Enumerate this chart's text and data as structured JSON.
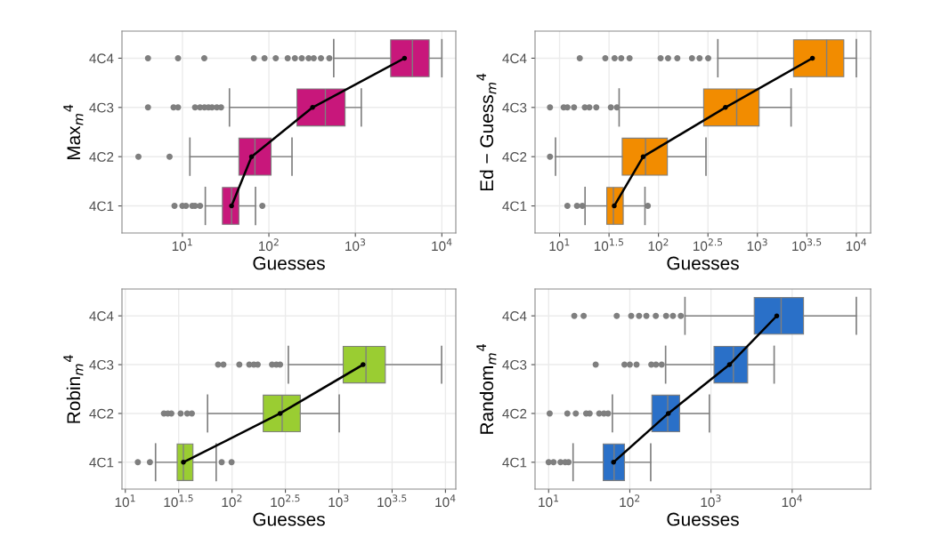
{
  "chart_data": [
    {
      "type": "box",
      "orientation": "horizontal",
      "log": "x",
      "grid": true,
      "legend": false,
      "xlabel": "Guesses",
      "ylabel": "Max$_{m}$$^{4}$",
      "categories": [
        "4C4",
        "4C3",
        "4C2",
        "4C1"
      ],
      "xlim": [
        2,
        14500
      ],
      "xticks": [
        {
          "value": 10,
          "label": "10$^{1}$"
        },
        {
          "value": 100,
          "label": "10$^{2}$"
        },
        {
          "value": 1000,
          "label": "10$^{3}$"
        },
        {
          "value": 10000,
          "label": "10$^{4}$"
        }
      ],
      "series": [
        {
          "type": "box",
          "color": "#c8177b",
          "boxes": [
            {
              "low": 562,
              "q1": 2560,
              "median": 4570,
              "q3": 7130,
              "high": 10000,
              "outliers": [
                4,
                8.9,
                17.9,
                67,
                89,
                120,
                165,
                200,
                240,
                288,
                330,
                400,
                500
              ]
            },
            {
              "low": 35,
              "q1": 211,
              "median": 450,
              "q3": 760,
              "high": 1170,
              "outliers": [
                4,
                7.9,
                8.9,
                14,
                16,
                18,
                20,
                22,
                25,
                28
              ]
            },
            {
              "low": 12.2,
              "q1": 45,
              "median": 69,
              "q3": 106,
              "high": 185,
              "outliers": [
                3.1,
                7.1
              ]
            },
            {
              "low": 18.4,
              "q1": 29,
              "median": 37,
              "q3": 45,
              "high": 70,
              "outliers": [
                8.1,
                10,
                11,
                13,
                14,
                16,
                84
              ]
            }
          ]
        },
        {
          "type": "line",
          "color": "#000000",
          "marker": "circle",
          "values": [
            3700,
            320,
            63,
            37
          ]
        }
      ]
    },
    {
      "type": "box",
      "orientation": "horizontal",
      "log": "x",
      "grid": true,
      "legend": false,
      "xlabel": "Guesses",
      "ylabel": "Ed − Guess$_{m}$$^{4}$",
      "categories": [
        "4C4",
        "4C3",
        "4C2",
        "4C1"
      ],
      "xlim": [
        5.65,
        13960
      ],
      "xticks": [
        {
          "value": 10,
          "label": "10$^{1}$"
        },
        {
          "value": 31.6227766,
          "label": "10$^{1.5}$"
        },
        {
          "value": 100,
          "label": "10$^{2}$"
        },
        {
          "value": 316.227766,
          "label": "10$^{2.5}$"
        },
        {
          "value": 1000,
          "label": "10$^{3}$"
        },
        {
          "value": 3162.27766,
          "label": "10$^{3.5}$"
        },
        {
          "value": 10000,
          "label": "10$^{4}$"
        }
      ],
      "series": [
        {
          "type": "box",
          "color": "#f28c00",
          "boxes": [
            {
              "low": 398,
              "q1": 2320,
              "median": 5010,
              "q3": 7470,
              "high": 10000,
              "outliers": [
                16,
                29,
                36,
                42,
                51,
                105,
                125,
                155,
                218,
                260,
                318
              ]
            },
            {
              "low": 40,
              "q1": 286,
              "median": 617,
              "q3": 1040,
              "high": 2190,
              "outliers": [
                8,
                11,
                12,
                14,
                18,
                20,
                23.5,
                33,
                38
              ]
            },
            {
              "low": 9.1,
              "q1": 43,
              "median": 74,
              "q3": 123,
              "high": 302,
              "outliers": [
                8
              ]
            },
            {
              "low": 18.1,
              "q1": 30,
              "median": 35,
              "q3": 44,
              "high": 73,
              "outliers": [
                12,
                15,
                17,
                78
              ]
            }
          ]
        },
        {
          "type": "line",
          "color": "#000000",
          "marker": "circle",
          "values": [
            3600,
            475,
            70,
            35.7
          ]
        }
      ]
    },
    {
      "type": "box",
      "orientation": "horizontal",
      "log": "x",
      "grid": true,
      "legend": false,
      "xlabel": "Guesses",
      "ylabel": "Robin$_{m}$$^{4}$",
      "categories": [
        "4C4",
        "4C3",
        "4C2",
        "4C1"
      ],
      "xlim": [
        9.3,
        12500
      ],
      "xticks": [
        {
          "value": 10,
          "label": "10$^{1}$"
        },
        {
          "value": 31.6227766,
          "label": "10$^{1.5}$"
        },
        {
          "value": 100,
          "label": "10$^{2}$"
        },
        {
          "value": 316.227766,
          "label": "10$^{2.5}$"
        },
        {
          "value": 1000,
          "label": "10$^{3}$"
        },
        {
          "value": 3162.27766,
          "label": "10$^{3.5}$"
        },
        {
          "value": 10000,
          "label": "10$^{4}$"
        }
      ],
      "series": [
        {
          "type": "box",
          "color": "#9acd32",
          "boxes": [
            null,
            {
              "low": 337,
              "q1": 1100,
              "median": 1800,
              "q3": 2730,
              "high": 9200,
              "outliers": [
                74,
                83,
                117,
                145,
                160,
                174,
                237,
                260,
                282
              ]
            },
            {
              "low": 59,
              "q1": 196,
              "median": 295,
              "q3": 436,
              "high": 1010,
              "outliers": [
                23,
                25,
                27,
                33,
                38,
                42
              ]
            },
            {
              "low": 19.2,
              "q1": 30.6,
              "median": 35,
              "q3": 43,
              "high": 71,
              "outliers": [
                13.1,
                17,
                80,
                99
              ]
            }
          ]
        },
        {
          "type": "line",
          "color": "#000000",
          "marker": "circle",
          "values": [
            null,
            1690,
            282,
            35
          ]
        }
      ]
    },
    {
      "type": "box",
      "orientation": "horizontal",
      "log": "x",
      "grid": true,
      "legend": false,
      "xlabel": "Guesses",
      "ylabel": "Random$_{m}$$^{4}$",
      "categories": [
        "4C4",
        "4C3",
        "4C2",
        "4C1"
      ],
      "xlim": [
        6.8,
        92700
      ],
      "xticks": [
        {
          "value": 10,
          "label": "10$^{1}$"
        },
        {
          "value": 100,
          "label": "10$^{2}$"
        },
        {
          "value": 1000,
          "label": "10$^{3}$"
        },
        {
          "value": 10000,
          "label": "10$^{4}$"
        }
      ],
      "series": [
        {
          "type": "box",
          "color": "#2a70c8",
          "boxes": [
            {
              "low": 478,
              "q1": 3410,
              "median": 7320,
              "q3": 13800,
              "high": 61700,
              "outliers": [
                20.7,
                27,
                69,
                104,
                130,
                160,
                209,
                280,
                340,
                425
              ]
            },
            {
              "low": 276,
              "q1": 1090,
              "median": 1890,
              "q3": 2830,
              "high": 6000,
              "outliers": [
                38,
                86,
                100,
                121,
                184,
                210,
                247
              ]
            },
            {
              "low": 61,
              "q1": 187,
              "median": 293,
              "q3": 411,
              "high": 955,
              "outliers": [
                10.3,
                17,
                21.6,
                29,
                32,
                42,
                48,
                54
              ]
            },
            {
              "low": 20,
              "q1": 47,
              "median": 64,
              "q3": 86,
              "high": 181,
              "outliers": [
                10,
                11.5,
                14,
                16,
                17.6
              ]
            }
          ]
        },
        {
          "type": "line",
          "color": "#000000",
          "marker": "circle",
          "values": [
            6460,
            1690,
            298,
            63
          ]
        }
      ]
    }
  ]
}
